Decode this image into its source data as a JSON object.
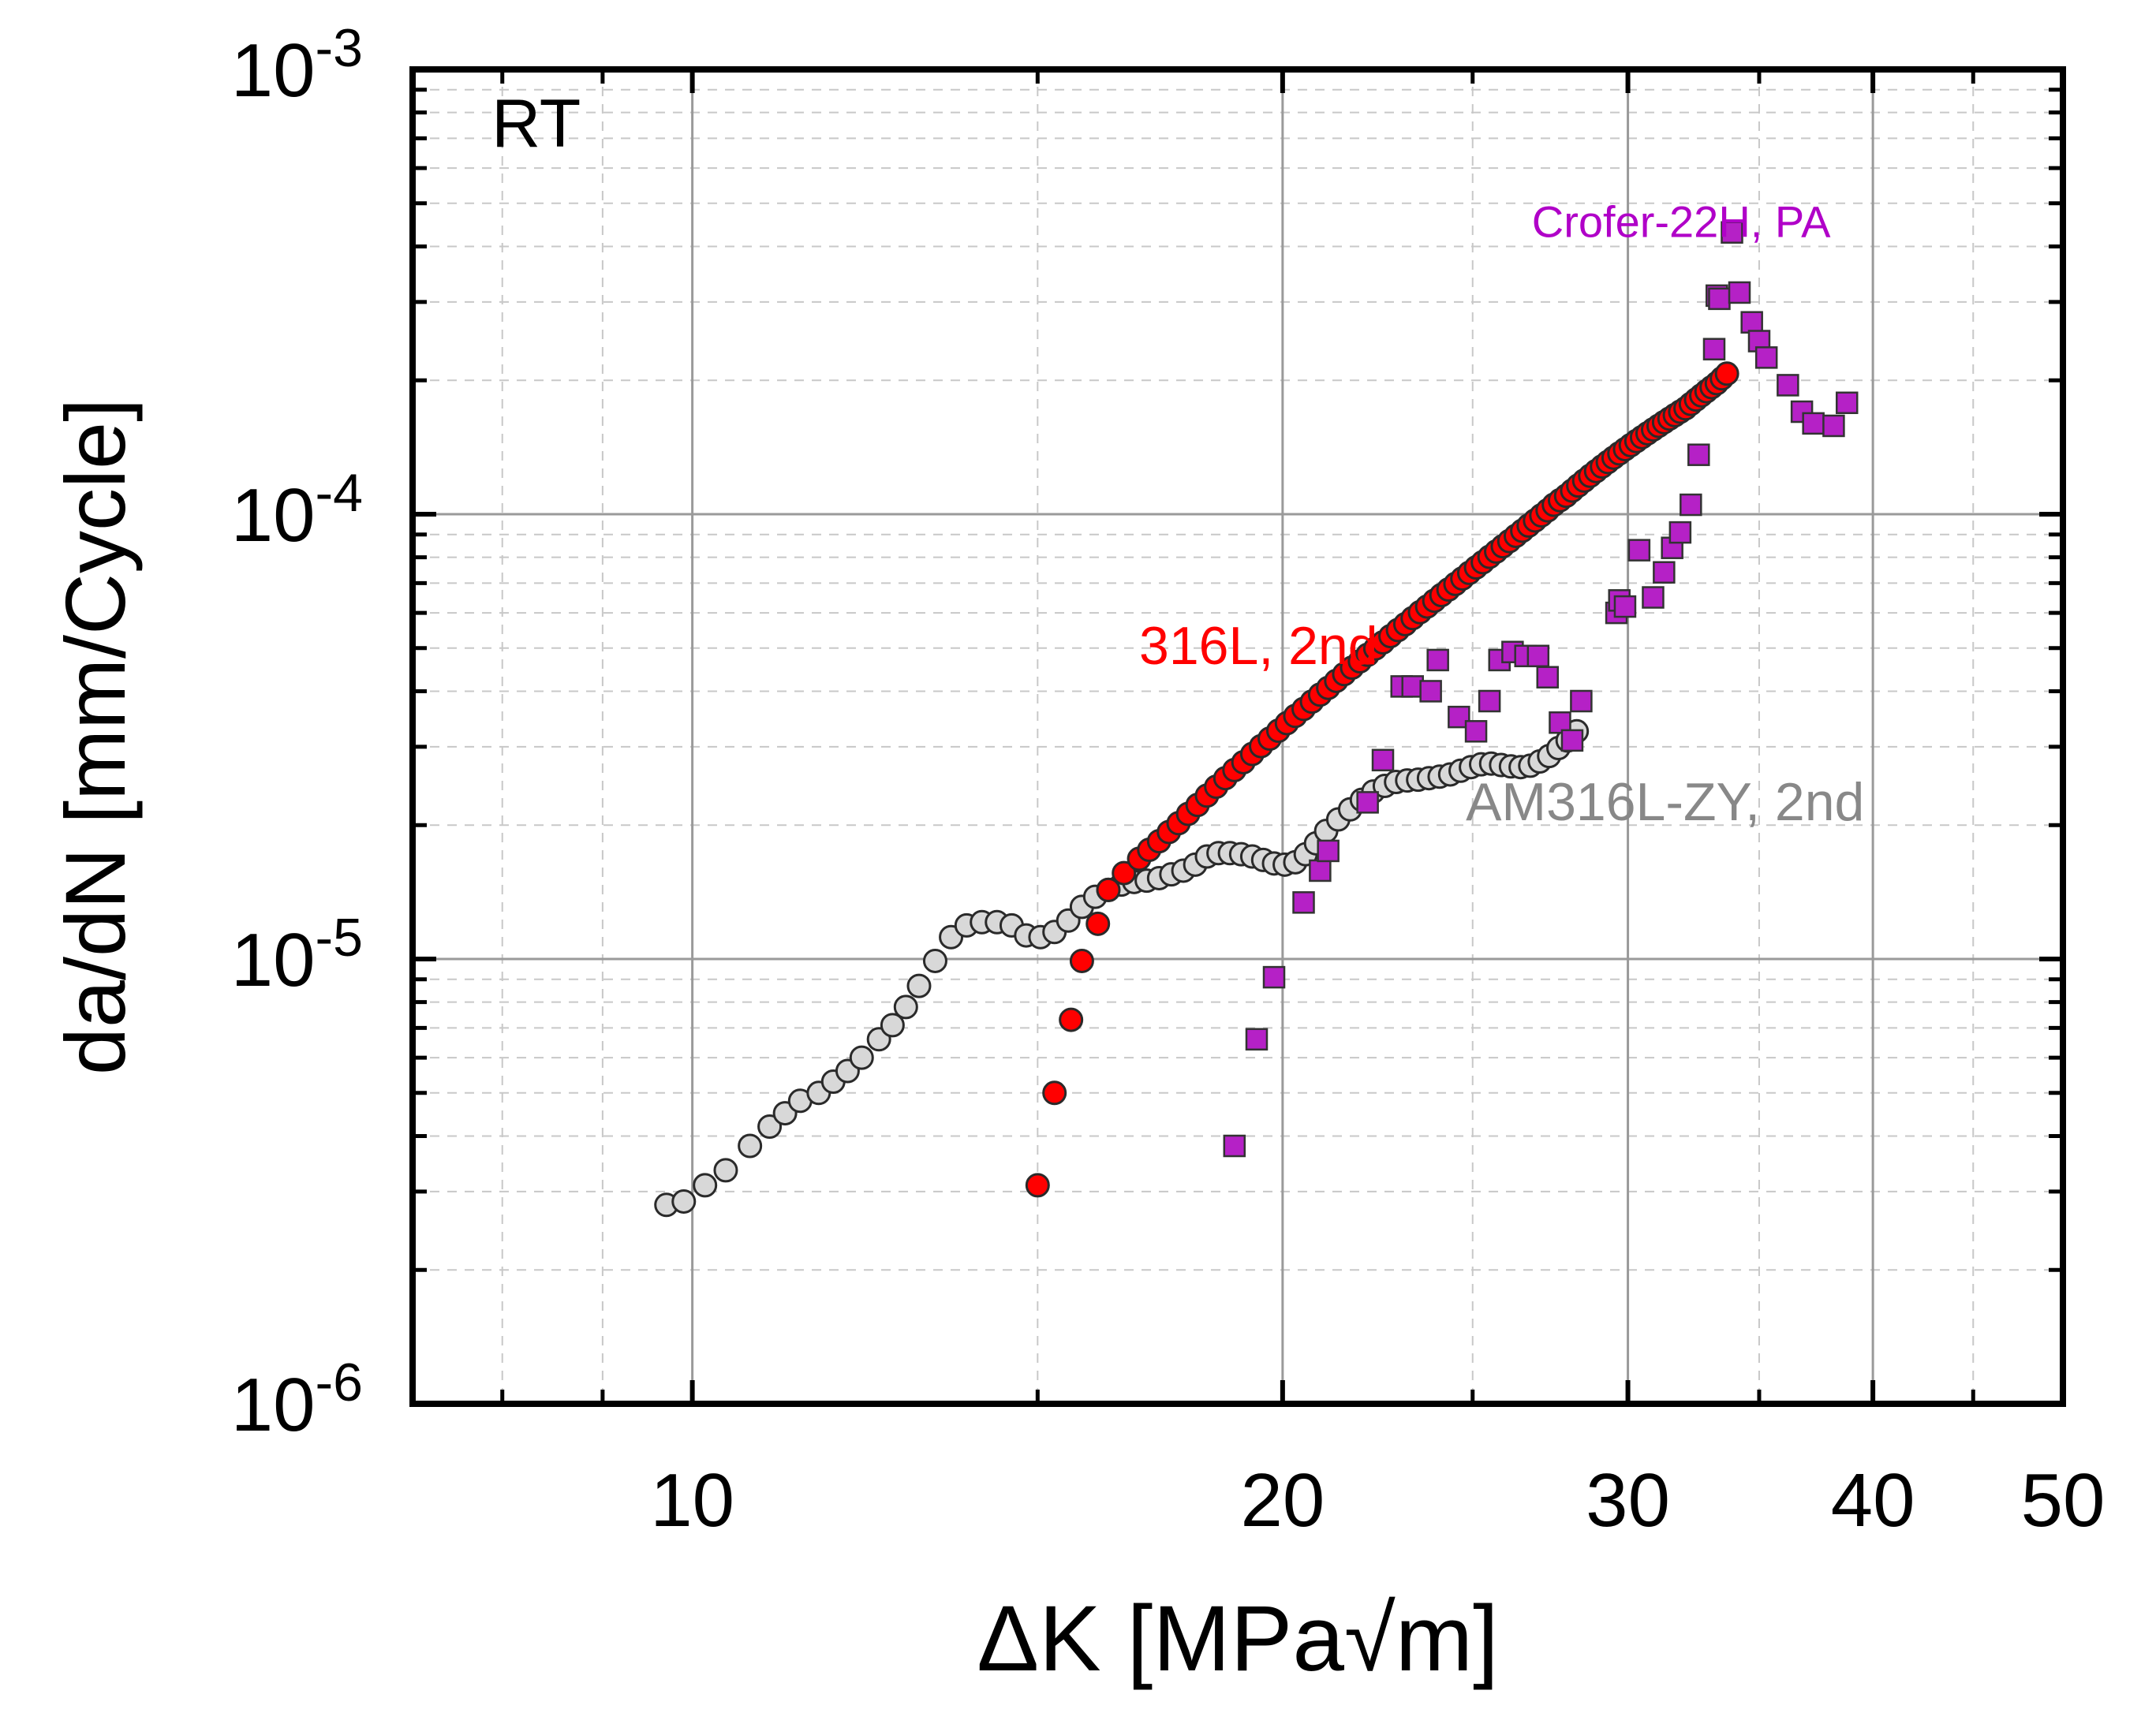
{
  "chart_data": {
    "type": "scatter",
    "xscale": "log",
    "yscale": "log",
    "xlabel": "ΔK [MPa√m]",
    "ylabel": "da/dN [mm/Cycle]",
    "xlim": [
      7.2,
      50
    ],
    "ylim": [
      1e-06,
      0.001
    ],
    "xticks": [
      {
        "value": 10,
        "label": "10"
      },
      {
        "value": 20,
        "label": "20"
      },
      {
        "value": 30,
        "label": "30"
      },
      {
        "value": 40,
        "label": "40"
      },
      {
        "value": 50,
        "label": "50"
      }
    ],
    "yticks": [
      {
        "value": 1e-06,
        "base": "10",
        "exp": "-6"
      },
      {
        "value": 1e-05,
        "base": "10",
        "exp": "-5"
      },
      {
        "value": 0.0001,
        "base": "10",
        "exp": "-4"
      },
      {
        "value": 0.001,
        "base": "10",
        "exp": "-3"
      }
    ],
    "grid": true,
    "annotations": [
      {
        "text": "RT",
        "x": 7.9,
        "y": 0.00067,
        "color": "#000000",
        "size": "large"
      },
      {
        "text": "Crofer-22H, PA",
        "x": 26.8,
        "y": 0.00042,
        "color": "#b000c8",
        "size": "small"
      },
      {
        "text": "316L, 2nd",
        "x": 16.9,
        "y": 4.6e-05,
        "color": "#ff0000",
        "size": "medium"
      },
      {
        "text": "AM316L-ZY, 2nd",
        "x": 24.8,
        "y": 2.05e-05,
        "color": "#888888",
        "size": "medium"
      }
    ],
    "series": [
      {
        "name": "AM316L-ZY, 2nd",
        "marker": "circle",
        "color": "#d8d8d8",
        "points": [
          [
            9.7,
            2.8e-06
          ],
          [
            9.9,
            2.85e-06
          ],
          [
            10.15,
            3.1e-06
          ],
          [
            10.4,
            3.35e-06
          ],
          [
            10.7,
            3.8e-06
          ],
          [
            10.95,
            4.2e-06
          ],
          [
            11.15,
            4.5e-06
          ],
          [
            11.35,
            4.8e-06
          ],
          [
            11.6,
            5e-06
          ],
          [
            11.8,
            5.3e-06
          ],
          [
            12.0,
            5.6e-06
          ],
          [
            12.2,
            6e-06
          ],
          [
            12.45,
            6.6e-06
          ],
          [
            12.65,
            7.1e-06
          ],
          [
            12.85,
            7.8e-06
          ],
          [
            13.05,
            8.7e-06
          ],
          [
            13.3,
            9.9e-06
          ],
          [
            13.55,
            1.12e-05
          ],
          [
            13.8,
            1.19e-05
          ],
          [
            14.05,
            1.21e-05
          ],
          [
            14.3,
            1.21e-05
          ],
          [
            14.55,
            1.19e-05
          ],
          [
            14.8,
            1.13e-05
          ],
          [
            15.05,
            1.12e-05
          ],
          [
            15.3,
            1.15e-05
          ],
          [
            15.55,
            1.22e-05
          ],
          [
            15.8,
            1.31e-05
          ],
          [
            16.05,
            1.38e-05
          ],
          [
            16.3,
            1.43e-05
          ],
          [
            16.55,
            1.47e-05
          ],
          [
            16.8,
            1.49e-05
          ],
          [
            17.05,
            1.5e-05
          ],
          [
            17.3,
            1.52e-05
          ],
          [
            17.55,
            1.55e-05
          ],
          [
            17.8,
            1.58e-05
          ],
          [
            18.05,
            1.63e-05
          ],
          [
            18.3,
            1.7e-05
          ],
          [
            18.55,
            1.73e-05
          ],
          [
            18.8,
            1.73e-05
          ],
          [
            19.05,
            1.72e-05
          ],
          [
            19.3,
            1.7e-05
          ],
          [
            19.55,
            1.67e-05
          ],
          [
            19.8,
            1.64e-05
          ],
          [
            20.05,
            1.63e-05
          ],
          [
            20.3,
            1.65e-05
          ],
          [
            20.55,
            1.72e-05
          ],
          [
            20.8,
            1.82e-05
          ],
          [
            21.05,
            1.94e-05
          ],
          [
            21.35,
            2.06e-05
          ],
          [
            21.65,
            2.17e-05
          ],
          [
            21.95,
            2.28e-05
          ],
          [
            22.25,
            2.38e-05
          ],
          [
            22.55,
            2.45e-05
          ],
          [
            22.85,
            2.5e-05
          ],
          [
            23.15,
            2.52e-05
          ],
          [
            23.45,
            2.53e-05
          ],
          [
            23.75,
            2.55e-05
          ],
          [
            24.05,
            2.57e-05
          ],
          [
            24.35,
            2.6e-05
          ],
          [
            24.65,
            2.65e-05
          ],
          [
            24.95,
            2.7e-05
          ],
          [
            25.25,
            2.74e-05
          ],
          [
            25.55,
            2.75e-05
          ],
          [
            25.85,
            2.73e-05
          ],
          [
            26.15,
            2.71e-05
          ],
          [
            26.45,
            2.7e-05
          ],
          [
            26.75,
            2.72e-05
          ],
          [
            27.05,
            2.78e-05
          ],
          [
            27.35,
            2.86e-05
          ],
          [
            27.65,
            2.98e-05
          ],
          [
            27.95,
            3.1e-05
          ],
          [
            28.25,
            3.25e-05
          ]
        ]
      },
      {
        "name": "316L, 2nd",
        "marker": "circle",
        "color": "#ff0000",
        "points": [
          [
            15.0,
            3.1e-06
          ],
          [
            15.3,
            5e-06
          ],
          [
            15.6,
            7.3e-06
          ],
          [
            15.8,
            9.9e-06
          ],
          [
            16.1,
            1.2e-05
          ],
          [
            16.3,
            1.43e-05
          ],
          [
            16.6,
            1.56e-05
          ],
          [
            16.9,
            1.68e-05
          ],
          [
            17.1,
            1.76e-05
          ],
          [
            17.3,
            1.84e-05
          ],
          [
            17.5,
            1.93e-05
          ],
          [
            17.7,
            2.02e-05
          ],
          [
            17.9,
            2.12e-05
          ],
          [
            18.1,
            2.22e-05
          ],
          [
            18.3,
            2.33e-05
          ],
          [
            18.5,
            2.44e-05
          ],
          [
            18.7,
            2.55e-05
          ],
          [
            18.9,
            2.66e-05
          ],
          [
            19.1,
            2.77e-05
          ],
          [
            19.3,
            2.89e-05
          ],
          [
            19.5,
            3.01e-05
          ],
          [
            19.7,
            3.13e-05
          ],
          [
            19.9,
            3.26e-05
          ],
          [
            20.1,
            3.39e-05
          ],
          [
            20.3,
            3.52e-05
          ],
          [
            20.5,
            3.65e-05
          ],
          [
            20.7,
            3.79e-05
          ],
          [
            20.9,
            3.93e-05
          ],
          [
            21.1,
            4.07e-05
          ],
          [
            21.3,
            4.22e-05
          ],
          [
            21.5,
            4.37e-05
          ],
          [
            21.7,
            4.52e-05
          ],
          [
            21.9,
            4.67e-05
          ],
          [
            22.1,
            4.83e-05
          ],
          [
            22.3,
            4.99e-05
          ],
          [
            22.5,
            5.15e-05
          ],
          [
            22.7,
            5.32e-05
          ],
          [
            22.9,
            5.49e-05
          ],
          [
            23.1,
            5.66e-05
          ],
          [
            23.3,
            5.84e-05
          ],
          [
            23.5,
            6.02e-05
          ],
          [
            23.7,
            6.2e-05
          ],
          [
            23.9,
            6.39e-05
          ],
          [
            24.1,
            6.58e-05
          ],
          [
            24.3,
            6.77e-05
          ],
          [
            24.5,
            6.97e-05
          ],
          [
            24.7,
            7.17e-05
          ],
          [
            24.9,
            7.38e-05
          ],
          [
            25.1,
            7.59e-05
          ],
          [
            25.3,
            7.8e-05
          ],
          [
            25.5,
            8.02e-05
          ],
          [
            25.7,
            8.24e-05
          ],
          [
            25.9,
            8.47e-05
          ],
          [
            26.1,
            8.7e-05
          ],
          [
            26.3,
            8.94e-05
          ],
          [
            26.5,
            9.18e-05
          ],
          [
            26.7,
            9.43e-05
          ],
          [
            26.9,
            9.68e-05
          ],
          [
            27.1,
            9.94e-05
          ],
          [
            27.3,
            0.000102
          ],
          [
            27.5,
            0.000105
          ],
          [
            27.7,
            0.0001075
          ],
          [
            27.9,
            0.00011
          ],
          [
            28.1,
            0.000113
          ],
          [
            28.3,
            0.000116
          ],
          [
            28.5,
            0.000119
          ],
          [
            28.7,
            0.000122
          ],
          [
            28.9,
            0.000125
          ],
          [
            29.1,
            0.000128
          ],
          [
            29.3,
            0.000131
          ],
          [
            29.5,
            0.000134
          ],
          [
            29.7,
            0.000137
          ],
          [
            29.9,
            0.00014
          ],
          [
            30.1,
            0.000143
          ],
          [
            30.3,
            0.000146
          ],
          [
            30.5,
            0.000149
          ],
          [
            30.7,
            0.000152
          ],
          [
            30.9,
            0.000155
          ],
          [
            31.1,
            0.000158
          ],
          [
            31.3,
            0.000161
          ],
          [
            31.5,
            0.000164
          ],
          [
            31.7,
            0.000167
          ],
          [
            31.9,
            0.00017
          ],
          [
            32.1,
            0.000173
          ],
          [
            32.3,
            0.000177
          ],
          [
            32.5,
            0.000181
          ],
          [
            32.7,
            0.000185
          ],
          [
            32.9,
            0.000189
          ],
          [
            33.1,
            0.000193
          ],
          [
            33.3,
            0.000197
          ],
          [
            33.5,
            0.000202
          ],
          [
            33.7,
            0.000207
          ]
        ]
      },
      {
        "name": "Crofer-22H, PA",
        "marker": "square",
        "color": "#b521c6",
        "points": [
          [
            18.9,
            3.8e-06
          ],
          [
            19.4,
            6.6e-06
          ],
          [
            19.8,
            9.1e-06
          ],
          [
            20.5,
            1.34e-05
          ],
          [
            20.9,
            1.58e-05
          ],
          [
            21.1,
            1.75e-05
          ],
          [
            22.1,
            2.25e-05
          ],
          [
            22.5,
            2.8e-05
          ],
          [
            23.0,
            4.1e-05
          ],
          [
            23.3,
            4.1e-05
          ],
          [
            23.8,
            4e-05
          ],
          [
            24.0,
            4.7e-05
          ],
          [
            24.6,
            3.5e-05
          ],
          [
            25.1,
            3.25e-05
          ],
          [
            25.5,
            3.8e-05
          ],
          [
            25.8,
            4.7e-05
          ],
          [
            26.2,
            4.9e-05
          ],
          [
            26.6,
            4.8e-05
          ],
          [
            27.0,
            4.8e-05
          ],
          [
            27.3,
            4.3e-05
          ],
          [
            27.7,
            3.4e-05
          ],
          [
            28.1,
            3.1e-05
          ],
          [
            28.4,
            3.8e-05
          ],
          [
            29.6,
            6e-05
          ],
          [
            29.7,
            6.4e-05
          ],
          [
            29.9,
            6.2e-05
          ],
          [
            30.4,
            8.3e-05
          ],
          [
            30.9,
            6.5e-05
          ],
          [
            31.3,
            7.4e-05
          ],
          [
            31.6,
            8.4e-05
          ],
          [
            31.9,
            9.1e-05
          ],
          [
            32.3,
            0.000105
          ],
          [
            32.6,
            0.000136
          ],
          [
            33.2,
            0.000235
          ],
          [
            33.3,
            0.00031
          ],
          [
            33.4,
            0.000305
          ],
          [
            33.9,
            0.00043
          ],
          [
            34.2,
            0.000315
          ],
          [
            34.7,
            0.00027
          ],
          [
            35.0,
            0.000245
          ],
          [
            35.3,
            0.000225
          ],
          [
            36.2,
            0.000195
          ],
          [
            36.8,
            0.00017
          ],
          [
            37.3,
            0.00016
          ],
          [
            38.2,
            0.000158
          ],
          [
            38.8,
            0.000178
          ]
        ]
      }
    ]
  }
}
